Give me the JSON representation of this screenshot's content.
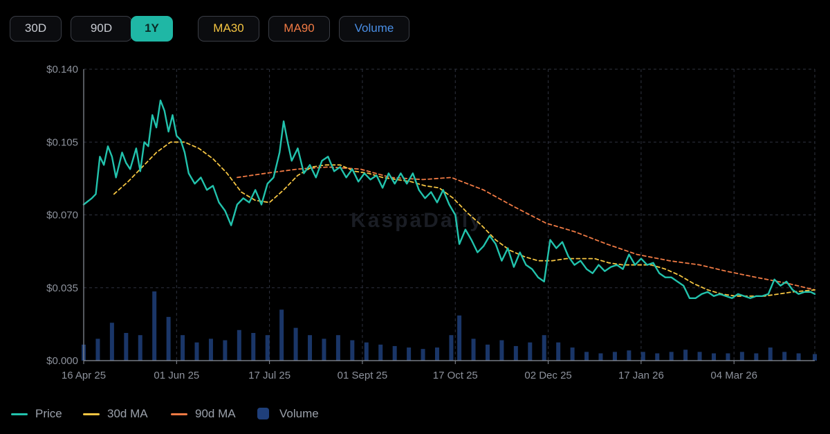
{
  "toolbar": {
    "range_buttons": [
      "30D",
      "90D",
      "1Y"
    ],
    "active_range": "1Y",
    "toggle_buttons": [
      "MA30",
      "MA90",
      "Volume"
    ]
  },
  "watermark": "KaspaDaily",
  "colors": {
    "background": "#000000",
    "price": "#22c3ad",
    "ma30": "#f5c542",
    "ma90": "#f07a44",
    "volume": "#1f3f7a",
    "grid": "#2f3340",
    "axis_text": "#8d929c"
  },
  "legend": [
    {
      "label": "Price",
      "color": "#22c3ad",
      "kind": "line"
    },
    {
      "label": "30d MA",
      "color": "#f5c542",
      "kind": "line"
    },
    {
      "label": "90d MA",
      "color": "#f07a44",
      "kind": "line"
    },
    {
      "label": "Volume",
      "color": "#1f3f7a",
      "kind": "box"
    }
  ],
  "chart_data": {
    "type": "line",
    "title": "",
    "xlabel": "",
    "ylabel": "",
    "x_start": "2025-04-16",
    "x_end": "2026-04-13",
    "ylim": [
      0,
      0.14
    ],
    "y_ticks": [
      "$0.000",
      "$0.035",
      "$0.070",
      "$0.105",
      "$0.140"
    ],
    "x_ticks": [
      "16 Apr 25",
      "01 Jun 25",
      "17 Jul 25",
      "01 Sept 25",
      "17 Oct 25",
      "02 Dec 25",
      "17 Jan 26",
      "04 Mar 26"
    ],
    "grid": true,
    "legend_position": "bottom-left",
    "series": [
      {
        "name": "Price",
        "points": [
          [
            "2025-04-16",
            0.075
          ],
          [
            "2025-04-20",
            0.078
          ],
          [
            "2025-04-22",
            0.08
          ],
          [
            "2025-04-24",
            0.098
          ],
          [
            "2025-04-26",
            0.094
          ],
          [
            "2025-04-28",
            0.103
          ],
          [
            "2025-04-30",
            0.098
          ],
          [
            "2025-05-02",
            0.088
          ],
          [
            "2025-05-05",
            0.1
          ],
          [
            "2025-05-07",
            0.095
          ],
          [
            "2025-05-09",
            0.092
          ],
          [
            "2025-05-12",
            0.102
          ],
          [
            "2025-05-14",
            0.091
          ],
          [
            "2025-05-16",
            0.105
          ],
          [
            "2025-05-18",
            0.103
          ],
          [
            "2025-05-20",
            0.118
          ],
          [
            "2025-05-22",
            0.112
          ],
          [
            "2025-05-24",
            0.125
          ],
          [
            "2025-05-26",
            0.12
          ],
          [
            "2025-05-28",
            0.11
          ],
          [
            "2025-05-30",
            0.118
          ],
          [
            "2025-06-01",
            0.108
          ],
          [
            "2025-06-03",
            0.106
          ],
          [
            "2025-06-05",
            0.1
          ],
          [
            "2025-06-07",
            0.09
          ],
          [
            "2025-06-10",
            0.085
          ],
          [
            "2025-06-13",
            0.088
          ],
          [
            "2025-06-16",
            0.082
          ],
          [
            "2025-06-19",
            0.084
          ],
          [
            "2025-06-22",
            0.076
          ],
          [
            "2025-06-25",
            0.072
          ],
          [
            "2025-06-28",
            0.065
          ],
          [
            "2025-07-01",
            0.075
          ],
          [
            "2025-07-04",
            0.078
          ],
          [
            "2025-07-07",
            0.076
          ],
          [
            "2025-07-10",
            0.082
          ],
          [
            "2025-07-13",
            0.075
          ],
          [
            "2025-07-16",
            0.085
          ],
          [
            "2025-07-19",
            0.088
          ],
          [
            "2025-07-22",
            0.1
          ],
          [
            "2025-07-24",
            0.115
          ],
          [
            "2025-07-26",
            0.105
          ],
          [
            "2025-07-28",
            0.096
          ],
          [
            "2025-07-31",
            0.102
          ],
          [
            "2025-08-03",
            0.09
          ],
          [
            "2025-08-06",
            0.094
          ],
          [
            "2025-08-09",
            0.088
          ],
          [
            "2025-08-12",
            0.096
          ],
          [
            "2025-08-15",
            0.098
          ],
          [
            "2025-08-18",
            0.091
          ],
          [
            "2025-08-21",
            0.093
          ],
          [
            "2025-08-24",
            0.088
          ],
          [
            "2025-08-27",
            0.092
          ],
          [
            "2025-08-30",
            0.086
          ],
          [
            "2025-09-02",
            0.09
          ],
          [
            "2025-09-05",
            0.087
          ],
          [
            "2025-09-08",
            0.089
          ],
          [
            "2025-09-11",
            0.083
          ],
          [
            "2025-09-14",
            0.09
          ],
          [
            "2025-09-17",
            0.085
          ],
          [
            "2025-09-20",
            0.09
          ],
          [
            "2025-09-23",
            0.085
          ],
          [
            "2025-09-26",
            0.09
          ],
          [
            "2025-09-29",
            0.082
          ],
          [
            "2025-10-02",
            0.078
          ],
          [
            "2025-10-05",
            0.081
          ],
          [
            "2025-10-08",
            0.076
          ],
          [
            "2025-10-11",
            0.082
          ],
          [
            "2025-10-14",
            0.075
          ],
          [
            "2025-10-17",
            0.07
          ],
          [
            "2025-10-19",
            0.056
          ],
          [
            "2025-10-22",
            0.063
          ],
          [
            "2025-10-25",
            0.058
          ],
          [
            "2025-10-28",
            0.052
          ],
          [
            "2025-10-31",
            0.055
          ],
          [
            "2025-11-03",
            0.06
          ],
          [
            "2025-11-06",
            0.056
          ],
          [
            "2025-11-09",
            0.048
          ],
          [
            "2025-11-12",
            0.054
          ],
          [
            "2025-11-15",
            0.045
          ],
          [
            "2025-11-18",
            0.052
          ],
          [
            "2025-11-21",
            0.046
          ],
          [
            "2025-11-24",
            0.044
          ],
          [
            "2025-11-27",
            0.04
          ],
          [
            "2025-11-30",
            0.038
          ],
          [
            "2025-12-03",
            0.058
          ],
          [
            "2025-12-06",
            0.054
          ],
          [
            "2025-12-09",
            0.057
          ],
          [
            "2025-12-12",
            0.05
          ],
          [
            "2025-12-15",
            0.046
          ],
          [
            "2025-12-18",
            0.048
          ],
          [
            "2025-12-21",
            0.044
          ],
          [
            "2025-12-24",
            0.042
          ],
          [
            "2025-12-27",
            0.046
          ],
          [
            "2025-12-30",
            0.043
          ],
          [
            "2026-01-02",
            0.045
          ],
          [
            "2026-01-05",
            0.046
          ],
          [
            "2026-01-08",
            0.044
          ],
          [
            "2026-01-11",
            0.051
          ],
          [
            "2026-01-14",
            0.046
          ],
          [
            "2026-01-17",
            0.049
          ],
          [
            "2026-01-20",
            0.046
          ],
          [
            "2026-01-23",
            0.047
          ],
          [
            "2026-01-26",
            0.042
          ],
          [
            "2026-01-29",
            0.04
          ],
          [
            "2026-02-01",
            0.04
          ],
          [
            "2026-02-04",
            0.038
          ],
          [
            "2026-02-07",
            0.036
          ],
          [
            "2026-02-10",
            0.03
          ],
          [
            "2026-02-13",
            0.03
          ],
          [
            "2026-02-16",
            0.032
          ],
          [
            "2026-02-19",
            0.033
          ],
          [
            "2026-02-22",
            0.031
          ],
          [
            "2026-02-25",
            0.032
          ],
          [
            "2026-02-28",
            0.031
          ],
          [
            "2026-03-03",
            0.03
          ],
          [
            "2026-03-06",
            0.032
          ],
          [
            "2026-03-09",
            0.031
          ],
          [
            "2026-03-12",
            0.03
          ],
          [
            "2026-03-15",
            0.031
          ],
          [
            "2026-03-18",
            0.031
          ],
          [
            "2026-03-21",
            0.032
          ],
          [
            "2026-03-24",
            0.039
          ],
          [
            "2026-03-27",
            0.036
          ],
          [
            "2026-03-30",
            0.038
          ],
          [
            "2026-04-02",
            0.034
          ],
          [
            "2026-04-05",
            0.032
          ],
          [
            "2026-04-08",
            0.033
          ],
          [
            "2026-04-11",
            0.033
          ],
          [
            "2026-04-13",
            0.032
          ]
        ]
      },
      {
        "name": "30d MA",
        "points": [
          [
            "2025-05-01",
            0.08
          ],
          [
            "2025-05-08",
            0.086
          ],
          [
            "2025-05-15",
            0.093
          ],
          [
            "2025-05-22",
            0.1
          ],
          [
            "2025-05-29",
            0.105
          ],
          [
            "2025-06-05",
            0.105
          ],
          [
            "2025-06-12",
            0.102
          ],
          [
            "2025-06-19",
            0.097
          ],
          [
            "2025-06-26",
            0.09
          ],
          [
            "2025-07-03",
            0.081
          ],
          [
            "2025-07-10",
            0.077
          ],
          [
            "2025-07-17",
            0.076
          ],
          [
            "2025-07-24",
            0.082
          ],
          [
            "2025-07-31",
            0.089
          ],
          [
            "2025-08-07",
            0.093
          ],
          [
            "2025-08-14",
            0.094
          ],
          [
            "2025-08-21",
            0.094
          ],
          [
            "2025-08-28",
            0.091
          ],
          [
            "2025-09-04",
            0.09
          ],
          [
            "2025-09-11",
            0.088
          ],
          [
            "2025-09-18",
            0.087
          ],
          [
            "2025-09-25",
            0.086
          ],
          [
            "2025-10-02",
            0.084
          ],
          [
            "2025-10-09",
            0.083
          ],
          [
            "2025-10-16",
            0.078
          ],
          [
            "2025-10-23",
            0.071
          ],
          [
            "2025-10-30",
            0.065
          ],
          [
            "2025-11-06",
            0.058
          ],
          [
            "2025-11-13",
            0.053
          ],
          [
            "2025-11-20",
            0.05
          ],
          [
            "2025-11-27",
            0.048
          ],
          [
            "2025-12-04",
            0.048
          ],
          [
            "2025-12-11",
            0.049
          ],
          [
            "2025-12-18",
            0.049
          ],
          [
            "2025-12-25",
            0.049
          ],
          [
            "2026-01-01",
            0.047
          ],
          [
            "2026-01-08",
            0.046
          ],
          [
            "2026-01-15",
            0.046
          ],
          [
            "2026-01-22",
            0.046
          ],
          [
            "2026-01-29",
            0.044
          ],
          [
            "2026-02-05",
            0.041
          ],
          [
            "2026-02-12",
            0.037
          ],
          [
            "2026-02-19",
            0.034
          ],
          [
            "2026-02-26",
            0.032
          ],
          [
            "2026-03-05",
            0.031
          ],
          [
            "2026-03-12",
            0.031
          ],
          [
            "2026-03-19",
            0.031
          ],
          [
            "2026-03-26",
            0.032
          ],
          [
            "2026-04-02",
            0.033
          ],
          [
            "2026-04-13",
            0.034
          ]
        ]
      },
      {
        "name": "90d MA",
        "points": [
          [
            "2025-07-01",
            0.088
          ],
          [
            "2025-07-15",
            0.09
          ],
          [
            "2025-07-31",
            0.092
          ],
          [
            "2025-08-15",
            0.093
          ],
          [
            "2025-08-31",
            0.092
          ],
          [
            "2025-09-15",
            0.088
          ],
          [
            "2025-10-01",
            0.087
          ],
          [
            "2025-10-15",
            0.088
          ],
          [
            "2025-10-31",
            0.082
          ],
          [
            "2025-11-15",
            0.074
          ],
          [
            "2025-12-01",
            0.066
          ],
          [
            "2025-12-15",
            0.062
          ],
          [
            "2025-12-31",
            0.056
          ],
          [
            "2026-01-15",
            0.051
          ],
          [
            "2026-01-31",
            0.048
          ],
          [
            "2026-02-15",
            0.046
          ],
          [
            "2026-02-28",
            0.043
          ],
          [
            "2026-03-15",
            0.04
          ],
          [
            "2026-03-31",
            0.037
          ],
          [
            "2026-04-13",
            0.034
          ]
        ]
      }
    ],
    "volume": {
      "name": "Volume",
      "max_relative": 1.0,
      "points": [
        [
          "2025-04-16",
          0.22
        ],
        [
          "2025-04-23",
          0.3
        ],
        [
          "2025-04-30",
          0.52
        ],
        [
          "2025-05-07",
          0.38
        ],
        [
          "2025-05-14",
          0.35
        ],
        [
          "2025-05-21",
          0.95
        ],
        [
          "2025-05-28",
          0.6
        ],
        [
          "2025-06-04",
          0.35
        ],
        [
          "2025-06-11",
          0.25
        ],
        [
          "2025-06-18",
          0.3
        ],
        [
          "2025-06-25",
          0.28
        ],
        [
          "2025-07-02",
          0.42
        ],
        [
          "2025-07-09",
          0.38
        ],
        [
          "2025-07-16",
          0.35
        ],
        [
          "2025-07-23",
          0.7
        ],
        [
          "2025-07-30",
          0.45
        ],
        [
          "2025-08-06",
          0.35
        ],
        [
          "2025-08-13",
          0.3
        ],
        [
          "2025-08-20",
          0.35
        ],
        [
          "2025-08-27",
          0.28
        ],
        [
          "2025-09-03",
          0.25
        ],
        [
          "2025-09-10",
          0.22
        ],
        [
          "2025-09-17",
          0.2
        ],
        [
          "2025-09-24",
          0.18
        ],
        [
          "2025-10-01",
          0.16
        ],
        [
          "2025-10-08",
          0.18
        ],
        [
          "2025-10-15",
          0.35
        ],
        [
          "2025-10-19",
          0.62
        ],
        [
          "2025-10-26",
          0.3
        ],
        [
          "2025-11-02",
          0.22
        ],
        [
          "2025-11-09",
          0.28
        ],
        [
          "2025-11-16",
          0.2
        ],
        [
          "2025-11-23",
          0.25
        ],
        [
          "2025-11-30",
          0.35
        ],
        [
          "2025-12-07",
          0.25
        ],
        [
          "2025-12-14",
          0.18
        ],
        [
          "2025-12-21",
          0.12
        ],
        [
          "2025-12-28",
          0.1
        ],
        [
          "2026-01-04",
          0.12
        ],
        [
          "2026-01-11",
          0.14
        ],
        [
          "2026-01-18",
          0.12
        ],
        [
          "2026-01-25",
          0.1
        ],
        [
          "2026-02-01",
          0.12
        ],
        [
          "2026-02-08",
          0.15
        ],
        [
          "2026-02-15",
          0.12
        ],
        [
          "2026-02-22",
          0.1
        ],
        [
          "2026-03-01",
          0.1
        ],
        [
          "2026-03-08",
          0.12
        ],
        [
          "2026-03-15",
          0.1
        ],
        [
          "2026-03-22",
          0.18
        ],
        [
          "2026-03-29",
          0.12
        ],
        [
          "2026-04-05",
          0.1
        ],
        [
          "2026-04-13",
          0.09
        ]
      ]
    }
  }
}
